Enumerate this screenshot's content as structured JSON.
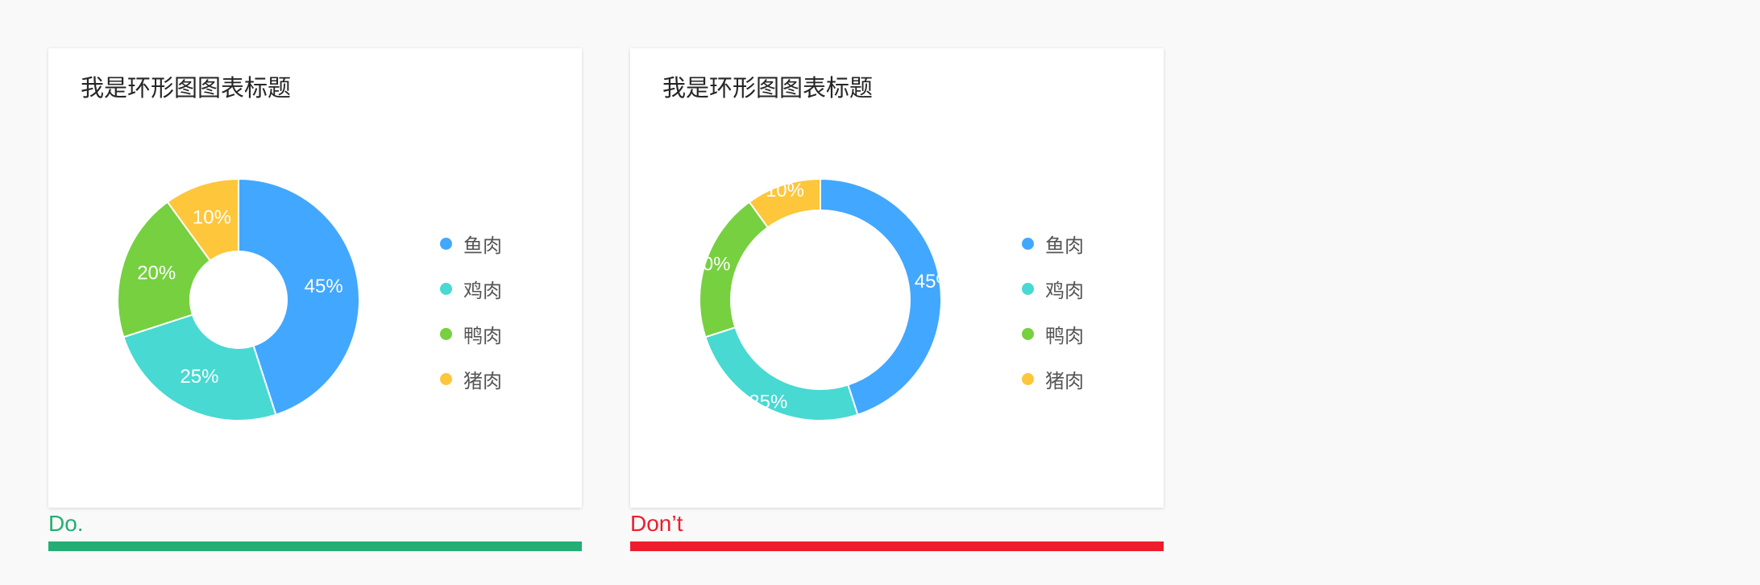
{
  "colors": {
    "page_background": "#f9f9f9",
    "panel_background": "#ffffff",
    "title_text": "#262626",
    "legend_text": "#555555",
    "do": "#24ae74",
    "dont": "#ee1d2d"
  },
  "panels": [
    {
      "title": "我是环形图图表标题",
      "verdict": {
        "text": "Do.",
        "color": "#24ae74"
      },
      "ring_thickness": "thick"
    },
    {
      "title": "我是环形图图表标题",
      "verdict": {
        "text": "Don’t",
        "color": "#ee1d2d"
      },
      "ring_thickness": "thin"
    }
  ],
  "legend": [
    {
      "label": "鱼肉",
      "color": "#42a7ff"
    },
    {
      "label": "鸡肉",
      "color": "#47d9d2"
    },
    {
      "label": "鸭肉",
      "color": "#76d03f"
    },
    {
      "label": "猪肉",
      "color": "#fec63b"
    }
  ],
  "chart_data": [
    {
      "type": "pie",
      "style": "donut",
      "title": "我是环形图图表标题",
      "categories": [
        "鱼肉",
        "鸡肉",
        "鸭肉",
        "猪肉"
      ],
      "values": [
        45,
        25,
        20,
        10
      ],
      "labels": [
        "45%",
        "25%",
        "20%",
        "10%"
      ],
      "colors": [
        "#42a7ff",
        "#47d9d2",
        "#76d03f",
        "#fec63b"
      ],
      "legend_position": "right"
    },
    {
      "type": "pie",
      "style": "donut",
      "title": "我是环形图图表标题",
      "categories": [
        "鱼肉",
        "鸡肉",
        "鸭肉",
        "猪肉"
      ],
      "values": [
        45,
        25,
        20,
        10
      ],
      "labels": [
        "45%",
        "25%",
        "20%",
        "10%"
      ],
      "colors": [
        "#42a7ff",
        "#47d9d2",
        "#76d03f",
        "#fec63b"
      ],
      "legend_position": "right"
    }
  ]
}
